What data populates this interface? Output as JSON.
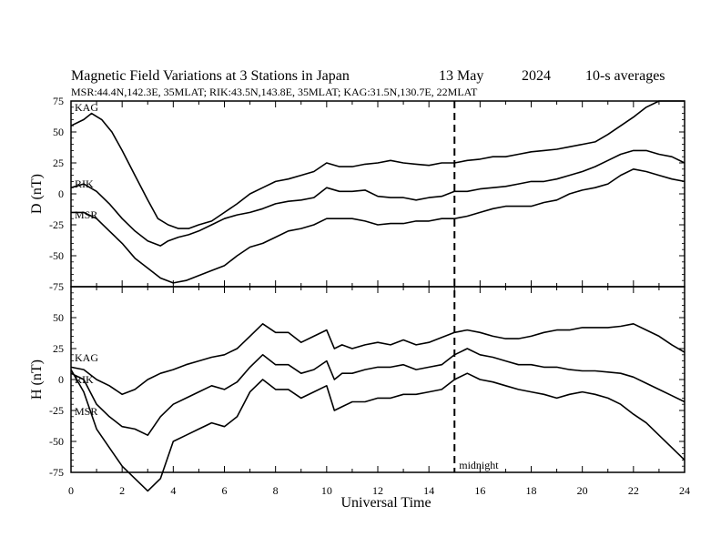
{
  "header": {
    "title": "Magnetic Field Variations at 3 Stations in Japan",
    "date": "13 May",
    "year": "2024",
    "averaging": "10-s averages",
    "stations": "MSR:44.4N,142.3E, 35MLAT;  RIK:43.5N,143.8E, 35MLAT;  KAG:31.5N,130.7E, 22MLAT"
  },
  "chart_data": [
    {
      "type": "line",
      "panel": "D",
      "ylabel": "D (nT)",
      "ylim": [
        -75,
        75
      ],
      "yticks": [
        "75",
        "50",
        "25",
        "0",
        "-25",
        "-50",
        "-75"
      ],
      "xlim": [
        0,
        24
      ],
      "series": [
        {
          "name": "KAG",
          "x": [
            0,
            0.5,
            0.8,
            1.2,
            1.6,
            2.0,
            2.5,
            3.0,
            3.4,
            3.8,
            4.2,
            4.6,
            5.0,
            5.5,
            6.0,
            6.5,
            7.0,
            7.5,
            8.0,
            8.5,
            9.0,
            9.5,
            10.0,
            10.5,
            11.0,
            11.5,
            12.0,
            12.5,
            13.0,
            13.5,
            14.0,
            14.5,
            15.0,
            15.5,
            16.0,
            16.5,
            17.0,
            17.5,
            18.0,
            18.5,
            19.0,
            19.5,
            20.0,
            20.5,
            21.0,
            21.5,
            22.0,
            22.5,
            23.0,
            23.5,
            24.0
          ],
          "values": [
            55,
            60,
            65,
            60,
            50,
            35,
            15,
            -5,
            -20,
            -25,
            -28,
            -28,
            -25,
            -22,
            -15,
            -8,
            0,
            5,
            10,
            12,
            15,
            18,
            25,
            22,
            22,
            24,
            25,
            27,
            25,
            24,
            23,
            25,
            25,
            27,
            28,
            30,
            30,
            32,
            34,
            35,
            36,
            38,
            40,
            42,
            48,
            55,
            62,
            70,
            75,
            75,
            75
          ]
        },
        {
          "name": "RIK",
          "x": [
            0,
            0.5,
            1.0,
            1.5,
            2.0,
            2.5,
            3.0,
            3.5,
            3.8,
            4.2,
            4.6,
            5.0,
            5.5,
            6.0,
            6.5,
            7.0,
            7.5,
            8.0,
            8.5,
            9.0,
            9.5,
            10.0,
            10.5,
            11.0,
            11.5,
            12.0,
            12.5,
            13.0,
            13.5,
            14.0,
            14.5,
            15.0,
            15.5,
            16.0,
            16.5,
            17.0,
            17.5,
            18.0,
            18.5,
            19.0,
            19.5,
            20.0,
            20.5,
            21.0,
            21.5,
            22.0,
            22.5,
            23.0,
            23.5,
            24.0
          ],
          "values": [
            5,
            8,
            2,
            -8,
            -20,
            -30,
            -38,
            -42,
            -38,
            -35,
            -33,
            -30,
            -25,
            -20,
            -17,
            -15,
            -12,
            -8,
            -6,
            -5,
            -3,
            5,
            2,
            2,
            3,
            -2,
            -3,
            -3,
            -5,
            -3,
            -2,
            2,
            2,
            4,
            5,
            6,
            8,
            10,
            10,
            12,
            15,
            18,
            22,
            27,
            32,
            35,
            35,
            32,
            30,
            25
          ]
        },
        {
          "name": "MSR",
          "x": [
            0,
            0.5,
            1.0,
            1.5,
            2.0,
            2.5,
            3.0,
            3.5,
            4.0,
            4.5,
            5.0,
            5.5,
            6.0,
            6.5,
            7.0,
            7.5,
            8.0,
            8.5,
            9.0,
            9.5,
            10.0,
            10.5,
            11.0,
            11.5,
            12.0,
            12.5,
            13.0,
            13.5,
            14.0,
            14.5,
            15.0,
            15.5,
            16.0,
            16.5,
            17.0,
            17.5,
            18.0,
            18.5,
            19.0,
            19.5,
            20.0,
            20.5,
            21.0,
            21.5,
            22.0,
            22.5,
            23.0,
            23.5,
            24.0
          ],
          "values": [
            -15,
            -15,
            -20,
            -30,
            -40,
            -52,
            -60,
            -68,
            -72,
            -70,
            -66,
            -62,
            -58,
            -50,
            -43,
            -40,
            -35,
            -30,
            -28,
            -25,
            -20,
            -20,
            -20,
            -22,
            -25,
            -24,
            -24,
            -22,
            -22,
            -20,
            -20,
            -18,
            -15,
            -12,
            -10,
            -10,
            -10,
            -7,
            -5,
            0,
            3,
            5,
            8,
            15,
            20,
            18,
            15,
            12,
            10
          ]
        }
      ]
    },
    {
      "type": "line",
      "panel": "H",
      "ylabel": "H (nT)",
      "ylim": [
        -75,
        75
      ],
      "yticks": [
        "50",
        "25",
        "0",
        "-25",
        "-50",
        "-75"
      ],
      "xlim": [
        0,
        24
      ],
      "xticks": [
        "0",
        "2",
        "4",
        "6",
        "8",
        "10",
        "12",
        "14",
        "16",
        "18",
        "20",
        "22",
        "24"
      ],
      "xlabel": "Universal Time",
      "annotation": "midnight",
      "annotation_x": 15,
      "series": [
        {
          "name": "KAG",
          "x": [
            0,
            0.5,
            1.0,
            1.5,
            2.0,
            2.5,
            3.0,
            3.5,
            4.0,
            4.5,
            5.0,
            5.5,
            6.0,
            6.5,
            7.0,
            7.5,
            8.0,
            8.5,
            9.0,
            9.5,
            10.0,
            10.3,
            10.6,
            11.0,
            11.5,
            12.0,
            12.5,
            13.0,
            13.5,
            14.0,
            14.5,
            15.0,
            15.5,
            16.0,
            16.5,
            17.0,
            17.5,
            18.0,
            18.5,
            19.0,
            19.5,
            20.0,
            20.5,
            21.0,
            21.5,
            22.0,
            22.5,
            23.0,
            23.5,
            24.0
          ],
          "values": [
            10,
            8,
            0,
            -5,
            -12,
            -8,
            0,
            5,
            8,
            12,
            15,
            18,
            20,
            25,
            35,
            45,
            38,
            38,
            30,
            35,
            40,
            25,
            28,
            25,
            28,
            30,
            28,
            32,
            28,
            30,
            34,
            38,
            40,
            38,
            35,
            33,
            33,
            35,
            38,
            40,
            40,
            42,
            42,
            42,
            43,
            45,
            40,
            35,
            28,
            22
          ]
        },
        {
          "name": "RIK",
          "x": [
            0,
            0.5,
            1.0,
            1.5,
            2.0,
            2.5,
            3.0,
            3.5,
            4.0,
            4.5,
            5.0,
            5.5,
            6.0,
            6.5,
            7.0,
            7.5,
            8.0,
            8.5,
            9.0,
            9.5,
            10.0,
            10.3,
            10.6,
            11.0,
            11.5,
            12.0,
            12.5,
            13.0,
            13.5,
            14.0,
            14.5,
            15.0,
            15.5,
            16.0,
            16.5,
            17.0,
            17.5,
            18.0,
            18.5,
            19.0,
            19.5,
            20.0,
            20.5,
            21.0,
            21.5,
            22.0,
            22.5,
            23.0,
            23.5,
            24.0
          ],
          "values": [
            5,
            0,
            -20,
            -30,
            -38,
            -40,
            -45,
            -30,
            -20,
            -15,
            -10,
            -5,
            -8,
            -2,
            10,
            20,
            12,
            12,
            5,
            8,
            15,
            0,
            5,
            5,
            8,
            10,
            10,
            12,
            8,
            10,
            12,
            20,
            25,
            20,
            18,
            15,
            12,
            12,
            10,
            10,
            8,
            7,
            7,
            6,
            5,
            2,
            -3,
            -8,
            -13,
            -18
          ]
        },
        {
          "name": "MSR",
          "x": [
            0,
            0.5,
            1.0,
            1.5,
            2.0,
            2.5,
            3.0,
            3.5,
            4.0,
            4.5,
            5.0,
            5.5,
            6.0,
            6.5,
            7.0,
            7.5,
            8.0,
            8.5,
            9.0,
            9.5,
            10.0,
            10.3,
            10.6,
            11.0,
            11.5,
            12.0,
            12.5,
            13.0,
            13.5,
            14.0,
            14.5,
            15.0,
            15.5,
            16.0,
            16.5,
            17.0,
            17.5,
            18.0,
            18.5,
            19.0,
            19.5,
            20.0,
            20.5,
            21.0,
            21.5,
            22.0,
            22.5,
            23.0,
            23.5,
            24.0
          ],
          "values": [
            8,
            -10,
            -40,
            -55,
            -70,
            -80,
            -90,
            -80,
            -50,
            -45,
            -40,
            -35,
            -38,
            -30,
            -10,
            0,
            -8,
            -8,
            -15,
            -10,
            -5,
            -25,
            -22,
            -18,
            -18,
            -15,
            -15,
            -12,
            -12,
            -10,
            -8,
            0,
            5,
            0,
            -2,
            -5,
            -8,
            -10,
            -12,
            -15,
            -12,
            -10,
            -12,
            -15,
            -20,
            -28,
            -35,
            -45,
            -55,
            -65
          ]
        }
      ]
    }
  ]
}
